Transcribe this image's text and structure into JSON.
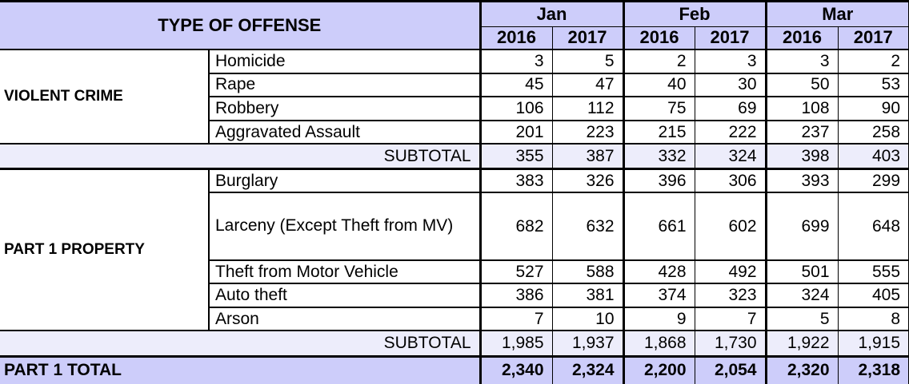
{
  "chart_data": {
    "type": "table",
    "title": "TYPE OF OFFENSE",
    "months": [
      "Jan",
      "Feb",
      "Mar"
    ],
    "years": [
      "2016",
      "2017",
      "2016",
      "2017",
      "2016",
      "2017"
    ],
    "sections": [
      {
        "category": "VIOLENT CRIME",
        "rows": [
          {
            "offense": "Homicide",
            "values": [
              3,
              5,
              2,
              3,
              3,
              2
            ]
          },
          {
            "offense": "Rape",
            "values": [
              45,
              47,
              40,
              30,
              50,
              53
            ]
          },
          {
            "offense": "Robbery",
            "values": [
              106,
              112,
              75,
              69,
              108,
              90
            ]
          },
          {
            "offense": "Aggravated Assault",
            "values": [
              201,
              223,
              215,
              222,
              237,
              258
            ]
          }
        ],
        "subtotal": {
          "label": "SUBTOTAL",
          "values": [
            355,
            387,
            332,
            324,
            398,
            403
          ]
        }
      },
      {
        "category": "PART 1 PROPERTY",
        "rows": [
          {
            "offense": "Burglary",
            "values": [
              383,
              326,
              396,
              306,
              393,
              299
            ]
          },
          {
            "offense": "Larceny (Except Theft from MV)",
            "values": [
              682,
              632,
              661,
              602,
              699,
              648
            ]
          },
          {
            "offense": "Theft from Motor Vehicle",
            "values": [
              527,
              588,
              428,
              492,
              501,
              555
            ]
          },
          {
            "offense": "Auto theft",
            "values": [
              386,
              381,
              374,
              323,
              324,
              405
            ]
          },
          {
            "offense": "Arson",
            "values": [
              7,
              10,
              9,
              7,
              5,
              8
            ]
          }
        ],
        "subtotal": {
          "label": "SUBTOTAL",
          "values": [
            1985,
            1937,
            1868,
            1730,
            1922,
            1915
          ]
        }
      }
    ],
    "total": {
      "label": "PART 1 TOTAL",
      "values": [
        2340,
        2324,
        2200,
        2054,
        2320,
        2318
      ]
    }
  },
  "colors": {
    "header_bg": "#cdcdfa",
    "subtotal_bg": "#ededfb",
    "total_bg": "#cdcdfa",
    "cell_bg": "#ffffff",
    "border": "#000000",
    "text": "#000000"
  }
}
